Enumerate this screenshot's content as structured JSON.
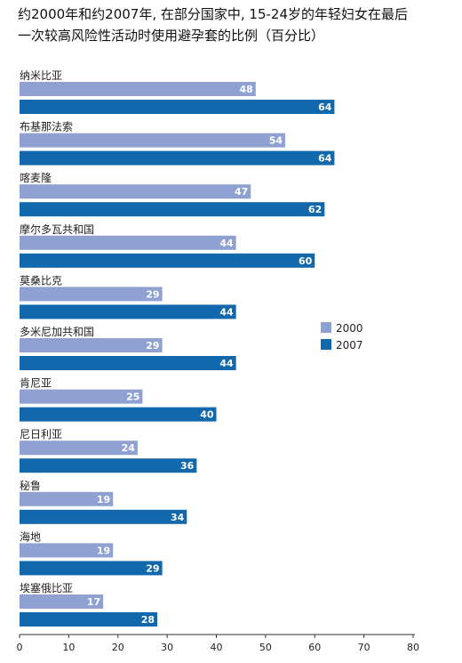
{
  "chart_data": {
    "type": "bar",
    "orientation": "horizontal",
    "title": "约2000年和约2007年，在部分国家中，15-24岁的年轻妇女在最后一次较高风险性活动时使用避孕套的比例（百分比）",
    "title_lines": [
      "约2000年和约2007年, 在部分国家中, 15-24岁的年轻妇女在最后",
      "一次较高风险性活动时使用避孕套的比例（百分比）"
    ],
    "categories": [
      "纳米比亚",
      "布基那法索",
      "喀麦隆",
      "摩尔多瓦共和国",
      "莫桑比克",
      "多米尼加共和国",
      "肯尼亚",
      "尼日利亚",
      "秘鲁",
      "海地",
      "埃塞俄比亚"
    ],
    "series": [
      {
        "name": "2000",
        "color": "#8fa1d2",
        "values": [
          48,
          54,
          47,
          44,
          29,
          29,
          25,
          24,
          19,
          19,
          17
        ]
      },
      {
        "name": "2007",
        "color": "#1268ac",
        "values": [
          64,
          64,
          62,
          60,
          44,
          44,
          40,
          36,
          34,
          29,
          28
        ]
      }
    ],
    "xlim": [
      0,
      80
    ],
    "xticks": [
      "0",
      "10",
      "20",
      "30",
      "40",
      "50",
      "60",
      "70",
      "80"
    ],
    "legend_position": "right",
    "grid": false,
    "xlabel": "",
    "ylabel": ""
  }
}
